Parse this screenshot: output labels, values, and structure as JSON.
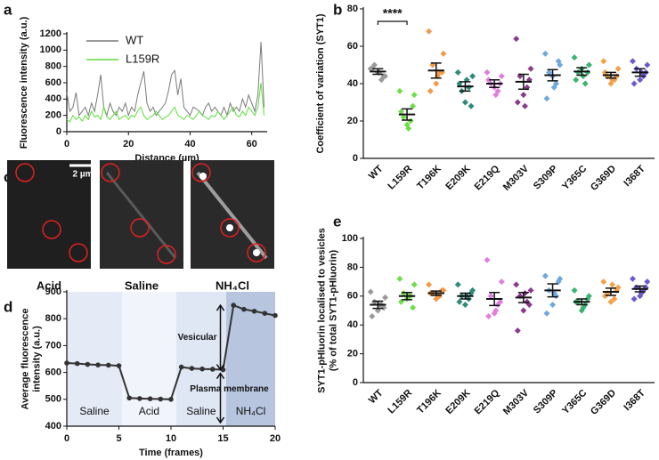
{
  "chart_data": [
    {
      "panel": "a",
      "type": "line",
      "xlabel": "Distance (µm)",
      "ylabel": [
        "Fluorescence intensity (a.u.)"
      ],
      "x": [
        0,
        1,
        2,
        3,
        4,
        5,
        6,
        7,
        8,
        9,
        10,
        11,
        12,
        13,
        14,
        15,
        16,
        17,
        18,
        19,
        20,
        21,
        22,
        23,
        24,
        25,
        26,
        27,
        28,
        29,
        30,
        31,
        32,
        33,
        34,
        35,
        36,
        37,
        38,
        39,
        40,
        41,
        42,
        43,
        44,
        45,
        46,
        47,
        48,
        49,
        50,
        51,
        52,
        53,
        54,
        55,
        56,
        57,
        58,
        59,
        60,
        61,
        62,
        63,
        64
      ],
      "series": [
        {
          "name": "WT",
          "color": "#7a7a7a",
          "values": [
            480,
            250,
            300,
            480,
            200,
            250,
            300,
            200,
            350,
            250,
            450,
            700,
            300,
            200,
            350,
            250,
            200,
            300,
            250,
            350,
            200,
            300,
            250,
            450,
            600,
            740,
            350,
            250,
            300,
            200,
            250,
            300,
            350,
            500,
            700,
            750,
            450,
            650,
            300,
            250,
            200,
            300,
            280,
            250,
            200,
            300,
            350,
            250,
            300,
            250,
            200,
            300,
            200,
            350,
            250,
            300,
            250,
            400,
            300,
            450,
            350,
            250,
            450,
            1100,
            300
          ]
        },
        {
          "name": "L159R",
          "color": "#5fdc3c",
          "values": [
            150,
            120,
            200,
            150,
            180,
            130,
            200,
            150,
            250,
            180,
            200,
            150,
            300,
            180,
            150,
            200,
            250,
            150,
            180,
            200,
            150,
            200,
            180,
            250,
            300,
            200,
            150,
            180,
            200,
            250,
            200,
            150,
            180,
            200,
            250,
            300,
            200,
            180,
            150,
            200,
            180,
            150,
            200,
            250,
            200,
            180,
            150,
            200,
            180,
            250,
            200,
            150,
            200,
            250,
            300,
            200,
            180,
            250,
            200,
            300,
            250,
            200,
            300,
            600,
            200
          ]
        }
      ],
      "xlim": [
        0,
        65
      ],
      "xticks": [
        0,
        20,
        40,
        60
      ],
      "ylim": [
        0,
        1200
      ],
      "yticks": [
        0,
        200,
        400,
        600,
        800,
        1000,
        1200
      ]
    },
    {
      "panel": "b",
      "type": "dot",
      "ylabel": [
        "Coefficient of variation (SYT1)"
      ],
      "significance": "****",
      "categories": [
        "WT",
        "L159R",
        "T196K",
        "E209K",
        "E219Q",
        "M303V",
        "S309P",
        "Y365C",
        "G369D",
        "I368T"
      ],
      "colors": [
        "#9a9a9a",
        "#6fdc4a",
        "#f29a4a",
        "#2e8b7a",
        "#e07ee0",
        "#8b3a8b",
        "#6fa8dc",
        "#3cb371",
        "#f2a04a",
        "#6a5acd"
      ],
      "points": [
        [
          48,
          44,
          50,
          42,
          46,
          48,
          44,
          46
        ],
        [
          36,
          34,
          22,
          20,
          18,
          25,
          28,
          16
        ],
        [
          68,
          56,
          50,
          46,
          40,
          36,
          46,
          44
        ],
        [
          46,
          44,
          36,
          38,
          30,
          40,
          28,
          42
        ],
        [
          46,
          44,
          40,
          36,
          38,
          42,
          40,
          34
        ],
        [
          64,
          48,
          44,
          38,
          34,
          30,
          42,
          28
        ],
        [
          56,
          50,
          46,
          40,
          44,
          32,
          52,
          38
        ],
        [
          54,
          50,
          46,
          40,
          48,
          42,
          46,
          44
        ],
        [
          52,
          48,
          44,
          42,
          40,
          46,
          44,
          42
        ],
        [
          52,
          50,
          48,
          44,
          42,
          40,
          46,
          46
        ]
      ],
      "means": [
        46.5,
        23.5,
        47,
        38.5,
        40,
        41,
        44.5,
        46.5,
        44.5,
        46
      ],
      "errors": [
        1.5,
        3,
        4,
        2.5,
        2,
        4,
        3,
        2,
        1.5,
        2
      ],
      "ylim": [
        0,
        80
      ],
      "yticks": [
        0,
        20,
        40,
        60,
        80
      ]
    },
    {
      "panel": "c",
      "type": "image",
      "labels": [
        "Acid",
        "Saline",
        "NH₄Cl"
      ],
      "scale_bar": "2 µm"
    },
    {
      "panel": "d",
      "type": "line",
      "markers": true,
      "xlabel": "Time (frames)",
      "ylabel": [
        "Average fluorescence",
        "intensity (a.u.)"
      ],
      "x": [
        0,
        1,
        2,
        3,
        4,
        5,
        6,
        7,
        8,
        9,
        10,
        11,
        12,
        13,
        14,
        15,
        16,
        17,
        18,
        19,
        20
      ],
      "series": [
        {
          "color": "#333333",
          "values": [
            635,
            633,
            630,
            628,
            627,
            625,
            505,
            503,
            502,
            501,
            500,
            620,
            615,
            613,
            612,
            610,
            850,
            835,
            828,
            820,
            812
          ]
        }
      ],
      "regions": [
        {
          "label": "Saline",
          "start": 0,
          "end": 5.3,
          "color": "#e4eaf6"
        },
        {
          "label": "Acid",
          "start": 5.3,
          "end": 10.5,
          "color": "#f1f4fb"
        },
        {
          "label": "Saline",
          "start": 10.5,
          "end": 15.3,
          "color": "#dfe6f4"
        },
        {
          "label": "NH₄Cl",
          "start": 15.3,
          "end": 20,
          "color": "#b7c5df"
        }
      ],
      "annotations": [
        "Vesicular",
        "Plasma membrane"
      ],
      "xlim": [
        0,
        20
      ],
      "xticks": [
        0,
        5,
        10,
        15,
        20
      ],
      "ylim": [
        400,
        900
      ],
      "yticks": [
        400,
        500,
        600,
        700,
        800,
        900
      ]
    },
    {
      "panel": "e",
      "type": "dot",
      "ylabel": [
        "SYT1-pHluorin localised to vesicles",
        "(% of total SYT1-pHluorin)"
      ],
      "categories": [
        "WT",
        "L159R",
        "T196K",
        "E209K",
        "E219Q",
        "M303V",
        "S309P",
        "Y365C",
        "G369D",
        "I368T"
      ],
      "colors": [
        "#9a9a9a",
        "#6fdc4a",
        "#f29a4a",
        "#2e8b7a",
        "#e07ee0",
        "#8b3a8b",
        "#6fa8dc",
        "#3cb371",
        "#f2a04a",
        "#6a5acd"
      ],
      "points": [
        [
          63,
          59,
          56,
          54,
          50,
          46,
          52,
          54
        ],
        [
          72,
          68,
          62,
          60,
          58,
          56,
          52,
          60
        ],
        [
          68,
          64,
          62,
          60,
          58,
          62,
          64,
          60
        ],
        [
          68,
          64,
          60,
          58,
          54,
          56,
          62,
          60
        ],
        [
          85,
          70,
          60,
          54,
          48,
          46,
          56,
          50
        ],
        [
          68,
          64,
          60,
          56,
          50,
          36,
          54,
          62
        ],
        [
          74,
          72,
          64,
          60,
          54,
          48,
          70,
          62
        ],
        [
          64,
          60,
          56,
          54,
          50,
          56,
          58,
          52
        ],
        [
          70,
          66,
          62,
          58,
          56,
          60,
          64,
          68
        ],
        [
          72,
          70,
          66,
          64,
          60,
          58,
          66,
          62
        ]
      ],
      "means": [
        54,
        60,
        62,
        60,
        58,
        59,
        64,
        56,
        63,
        65
      ],
      "errors": [
        2.5,
        2.5,
        1.5,
        2,
        4.5,
        3.5,
        4.5,
        2,
        2.5,
        2
      ],
      "ylim": [
        0,
        100
      ],
      "yticks": [
        0,
        20,
        40,
        60,
        80,
        100
      ]
    }
  ]
}
